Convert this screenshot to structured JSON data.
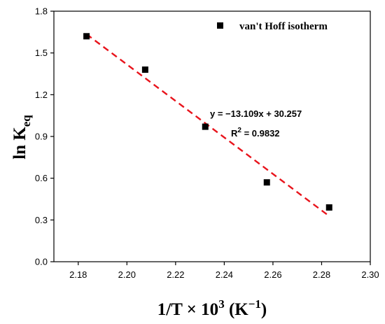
{
  "chart_data": {
    "type": "scatter",
    "xlabel": {
      "main": "1/T × 10",
      "sup": "3",
      "unit_open": " (K",
      "unit_sup": "−1",
      "unit_close": ")"
    },
    "ylabel": {
      "main": "ln K",
      "sub": "eq"
    },
    "xlim": [
      2.17,
      2.3
    ],
    "ylim": [
      0.0,
      1.8
    ],
    "xticks": [
      2.18,
      2.2,
      2.22,
      2.24,
      2.26,
      2.28,
      2.3
    ],
    "yticks": [
      0.0,
      0.3,
      0.6,
      0.9,
      1.2,
      1.5,
      1.8
    ],
    "xtick_labels": [
      "2.18",
      "2.20",
      "2.22",
      "2.24",
      "2.26",
      "2.28",
      "2.30"
    ],
    "ytick_labels": [
      "0.0",
      "0.3",
      "0.6",
      "0.9",
      "1.2",
      "1.5",
      "1.8"
    ],
    "series": [
      {
        "name": "van't Hoff isotherm",
        "x": [
          2.1834,
          2.2075,
          2.2322,
          2.2575,
          2.2831
        ],
        "y": [
          1.62,
          1.38,
          0.97,
          0.57,
          0.39
        ],
        "color": "#000000",
        "marker": "square"
      }
    ],
    "fit": {
      "slope": -13.109,
      "intercept": 30.257,
      "x_range": [
        2.1834,
        2.2831
      ],
      "color": "#e8141c",
      "style": "dashed"
    },
    "annotations": {
      "equation": "y = −13.109x + 30.257",
      "r2_main": "R",
      "r2_sup": "2",
      "r2_value": " = 0.9832"
    },
    "legend_position": "top-right",
    "grid": false
  }
}
